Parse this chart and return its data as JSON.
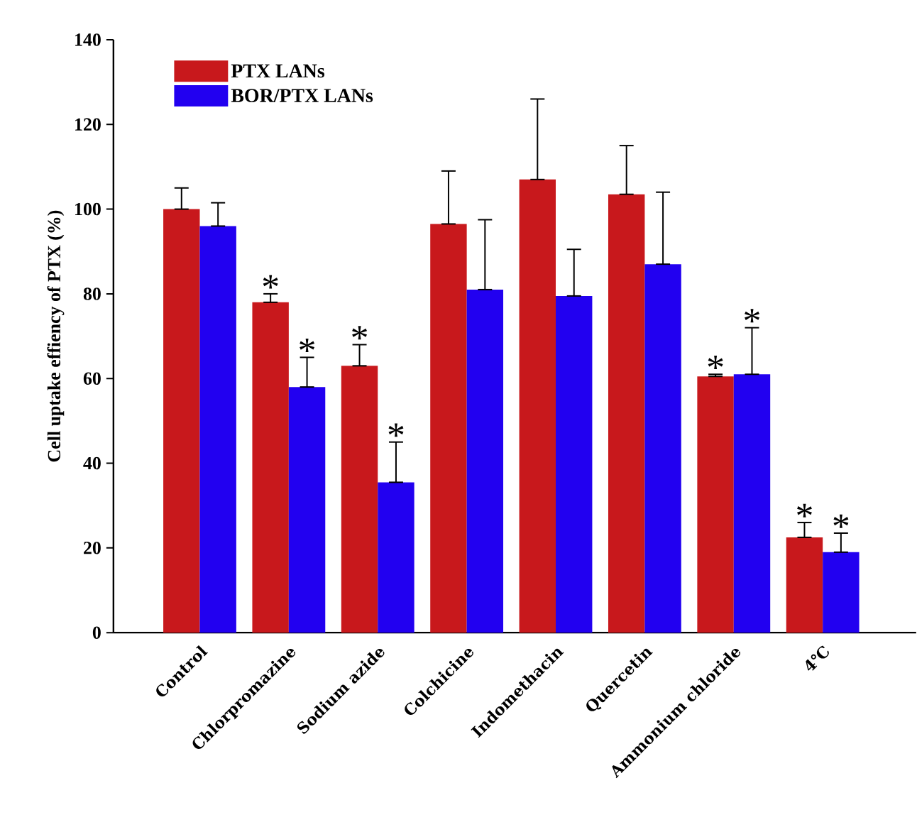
{
  "chart_data": {
    "type": "bar",
    "ylabel": "Cell uptake effiency of PTX (%)",
    "categories": [
      "Control",
      "Chlorpromazine",
      "Sodium azide",
      "Colchicine",
      "Indomethacin",
      "Quercetin",
      "Ammonium chloride",
      "4℃"
    ],
    "series": [
      {
        "name": "PTX LANs",
        "color": "#c8181c",
        "values": [
          100,
          78,
          63,
          96.5,
          107,
          103.5,
          60.5,
          22.5
        ],
        "errors": [
          [
            100,
            105
          ],
          [
            78,
            80
          ],
          [
            63,
            68
          ],
          [
            96.5,
            109
          ],
          [
            107,
            126
          ],
          [
            103.5,
            115
          ],
          [
            60.5,
            61
          ],
          [
            22.5,
            26
          ]
        ]
      },
      {
        "name": "BOR/PTX LANs",
        "color": "#2200f0",
        "values": [
          96,
          58,
          35.5,
          81,
          79.5,
          87,
          61,
          19
        ],
        "errors": [
          [
            96,
            101.5
          ],
          [
            58,
            65
          ],
          [
            35.5,
            45
          ],
          [
            81,
            97.5
          ],
          [
            79.5,
            90.5
          ],
          [
            87,
            104
          ],
          [
            61,
            72
          ],
          [
            19,
            23.5
          ]
        ]
      }
    ],
    "ylim": [
      0,
      140
    ],
    "yticks": [
      0,
      20,
      40,
      60,
      80,
      100,
      120,
      140
    ],
    "legend": "top left",
    "annotations": [
      {
        "text": "*",
        "x": "Chlorpromazine",
        "y": 78
      },
      {
        "text": "*",
        "x": "Chlorpromazine",
        "y": 58
      },
      {
        "text": "*",
        "x": "Sodium azide",
        "y": 63
      },
      {
        "text": "*",
        "x": "Sodium azide",
        "y": 35.5
      },
      {
        "text": "*",
        "x": "Ammonium chloride",
        "y": 60.5
      },
      {
        "text": "*",
        "x": "Ammonium chloride",
        "y": 61
      },
      {
        "text": "*",
        "x": "4℃",
        "y": 22.5
      },
      {
        "text": "*",
        "x": "4℃",
        "y": 19
      }
    ]
  }
}
